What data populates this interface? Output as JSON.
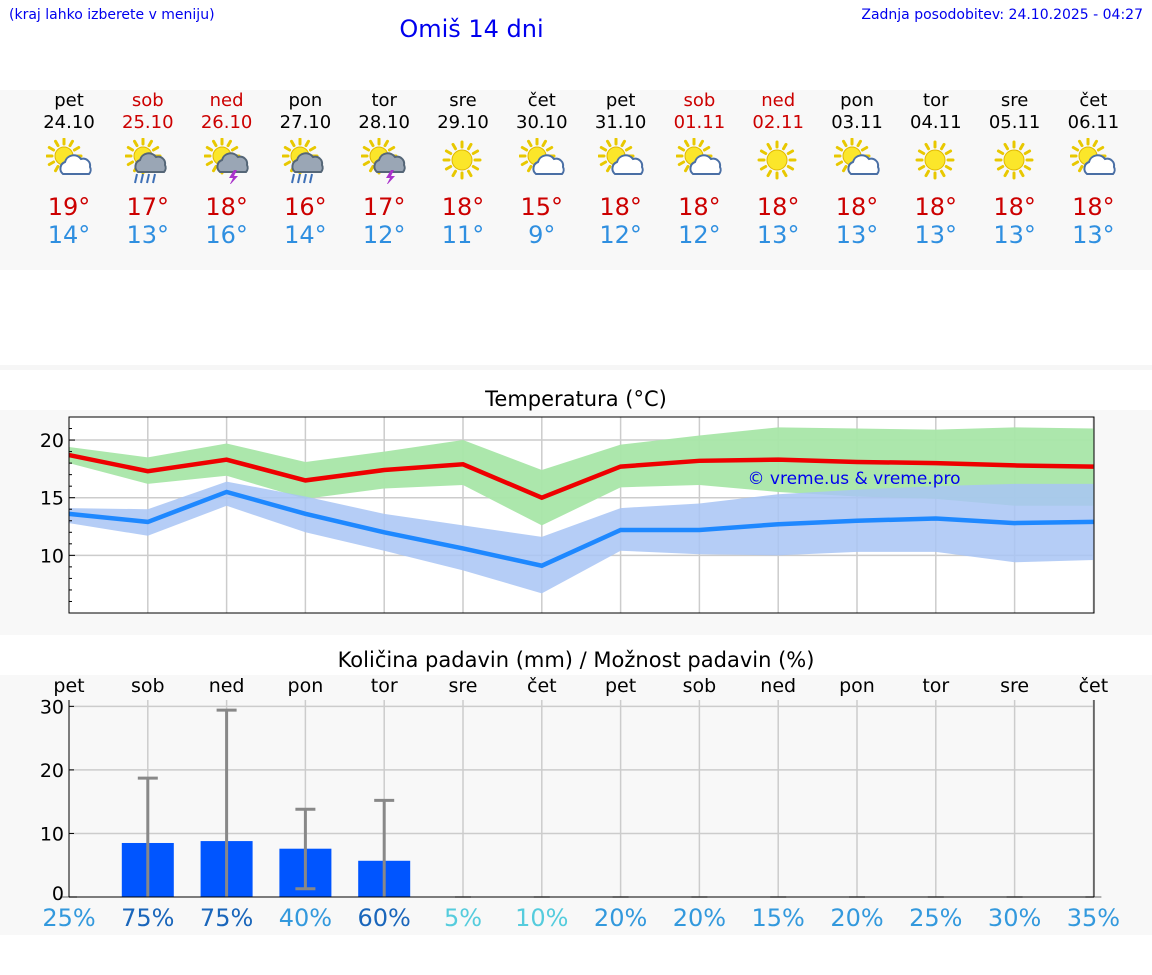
{
  "header": {
    "hint": "(kraj lahko izberete v meniju)",
    "title": "Omiš 14 dni",
    "updated": "Zadnja posodobitev: 24.10.2025 - 04:27"
  },
  "days": [
    {
      "name": "pet",
      "date": "24.10",
      "weekend": false,
      "icon": "sun-cloud-icon",
      "max": "19°",
      "min": "14°"
    },
    {
      "name": "sob",
      "date": "25.10",
      "weekend": true,
      "icon": "sun-rain-cloud-icon",
      "max": "17°",
      "min": "13°"
    },
    {
      "name": "ned",
      "date": "26.10",
      "weekend": true,
      "icon": "sun-thunder-cloud-icon",
      "max": "18°",
      "min": "16°"
    },
    {
      "name": "pon",
      "date": "27.10",
      "weekend": false,
      "icon": "sun-rain-cloud-icon",
      "max": "16°",
      "min": "14°"
    },
    {
      "name": "tor",
      "date": "28.10",
      "weekend": false,
      "icon": "sun-thunder-cloud-icon",
      "max": "17°",
      "min": "12°"
    },
    {
      "name": "sre",
      "date": "29.10",
      "weekend": false,
      "icon": "sun-icon",
      "max": "18°",
      "min": "11°"
    },
    {
      "name": "čet",
      "date": "30.10",
      "weekend": false,
      "icon": "sun-cloud-icon",
      "max": "15°",
      "min": "9°"
    },
    {
      "name": "pet",
      "date": "31.10",
      "weekend": false,
      "icon": "sun-cloud-icon",
      "max": "18°",
      "min": "12°"
    },
    {
      "name": "sob",
      "date": "01.11",
      "weekend": true,
      "icon": "sun-cloud-icon",
      "max": "18°",
      "min": "12°"
    },
    {
      "name": "ned",
      "date": "02.11",
      "weekend": true,
      "icon": "sun-icon",
      "max": "18°",
      "min": "13°"
    },
    {
      "name": "pon",
      "date": "03.11",
      "weekend": false,
      "icon": "sun-cloud-icon",
      "max": "18°",
      "min": "13°"
    },
    {
      "name": "tor",
      "date": "04.11",
      "weekend": false,
      "icon": "sun-icon",
      "max": "18°",
      "min": "13°"
    },
    {
      "name": "sre",
      "date": "05.11",
      "weekend": false,
      "icon": "sun-icon",
      "max": "18°",
      "min": "13°"
    },
    {
      "name": "čet",
      "date": "06.11",
      "weekend": false,
      "icon": "sun-cloud-icon",
      "max": "18°",
      "min": "13°"
    }
  ],
  "colors": {
    "max": "#ee0000",
    "min": "#1e88ff",
    "maxBand": "#a8e6a8",
    "minBand": "#a8c4f4",
    "bar": "#0055ff",
    "errorbar": "#888888",
    "weekend": "#cc0000",
    "link": "#0000ee"
  },
  "chart_data": [
    {
      "type": "line",
      "title": "Temperatura (°C)",
      "watermark": "© vreme.us & vreme.pro",
      "ylim": [
        5,
        22
      ],
      "yticks": [
        10,
        15,
        20
      ],
      "x": [
        0,
        1,
        2,
        3,
        4,
        5,
        6,
        7,
        8,
        9,
        10,
        11,
        12,
        13
      ],
      "series": [
        {
          "name": "max",
          "values": [
            18.7,
            17.3,
            18.3,
            16.5,
            17.4,
            17.9,
            15.0,
            17.7,
            18.2,
            18.3,
            18.1,
            18.0,
            17.8,
            17.7
          ]
        },
        {
          "name": "min",
          "values": [
            13.6,
            12.9,
            15.5,
            13.6,
            12.0,
            10.6,
            9.1,
            12.2,
            12.2,
            12.7,
            13.0,
            13.2,
            12.8,
            12.9
          ]
        },
        {
          "name": "max-range",
          "low": [
            18.0,
            16.2,
            16.9,
            14.9,
            15.8,
            16.1,
            12.6,
            15.9,
            16.1,
            15.5,
            15.1,
            14.9,
            14.3,
            14.3
          ],
          "high": [
            19.4,
            18.5,
            19.7,
            18.1,
            19.0,
            20.0,
            17.4,
            19.6,
            20.4,
            21.1,
            21.0,
            20.9,
            21.1,
            21.0
          ]
        },
        {
          "name": "min-range",
          "low": [
            12.8,
            11.7,
            14.3,
            12.0,
            10.4,
            8.7,
            6.7,
            10.4,
            10.1,
            10.0,
            10.3,
            10.3,
            9.4,
            9.6
          ],
          "high": [
            14.1,
            14.0,
            16.4,
            15.1,
            13.6,
            12.6,
            11.6,
            14.1,
            14.5,
            15.3,
            15.7,
            16.0,
            16.2,
            16.2
          ]
        }
      ]
    },
    {
      "type": "bar",
      "title": "Količina padavin (mm) / Možnost padavin (%)",
      "categories": [
        "pet",
        "sob",
        "ned",
        "pon",
        "tor",
        "sre",
        "čet",
        "pet",
        "sob",
        "ned",
        "pon",
        "tor",
        "sre",
        "čet"
      ],
      "ylim": [
        0,
        31
      ],
      "yticks": [
        0,
        10,
        20,
        30
      ],
      "values": [
        0,
        8.5,
        8.8,
        7.6,
        5.7,
        0,
        0,
        0,
        0,
        0,
        0,
        0,
        0,
        0
      ],
      "err_low": [
        0,
        0,
        0,
        1.3,
        0,
        0,
        0,
        0,
        0,
        0,
        0,
        0,
        0,
        0
      ],
      "err_high": [
        0,
        18.7,
        29.4,
        13.8,
        15.2,
        0,
        0,
        0,
        0,
        0,
        0,
        0,
        0,
        0
      ],
      "probability": [
        "25%",
        "75%",
        "75%",
        "40%",
        "60%",
        "5%",
        "10%",
        "20%",
        "20%",
        "15%",
        "20%",
        "25%",
        "30%",
        "35%"
      ],
      "probability_colors": [
        "#3399dd",
        "#1a66bb",
        "#1a66bb",
        "#3399dd",
        "#1a66bb",
        "#55ccdd",
        "#55ccdd",
        "#3399dd",
        "#3399dd",
        "#3399dd",
        "#3399dd",
        "#3399dd",
        "#3399dd",
        "#3399dd"
      ]
    }
  ]
}
